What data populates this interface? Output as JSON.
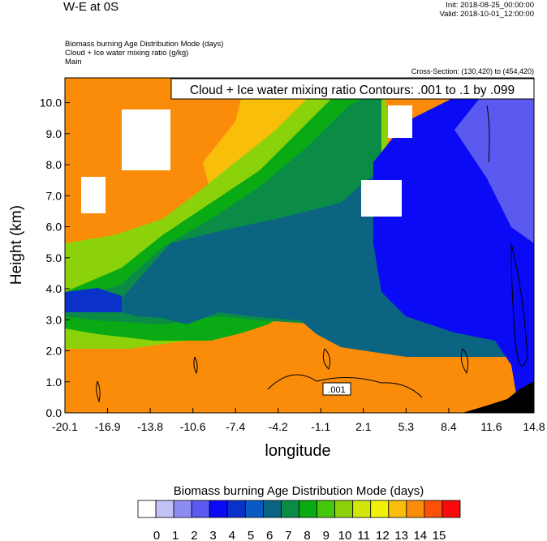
{
  "header": {
    "title": "W-E at 0S",
    "init": "Init: 2018-08-25_00:00:00",
    "valid": "Valid: 2018-10-01_12:00:00",
    "subtitle_lines": [
      "Biomass burning Age Distribution Mode   (days)",
      "Cloud + Ice water mixing ratio   (g/kg)",
      "Main"
    ],
    "cross_section": "Cross-Section: (130,420) to (454,420)"
  },
  "chart_data": {
    "type": "heatmap",
    "ylabel": "Height (km)",
    "xlabel": "longitude",
    "x_ticks": [
      "-20.1",
      "-16.9",
      "-13.8",
      "-10.6",
      "-7.4",
      "-4.2",
      "-1.1",
      "2.1",
      "5.3",
      "8.4",
      "11.6",
      "14.8"
    ],
    "y_ticks": [
      "0.0",
      "1.0",
      "2.0",
      "3.0",
      "4.0",
      "5.0",
      "6.0",
      "7.0",
      "8.0",
      "9.0",
      "10.0"
    ],
    "xlim": [
      -20.1,
      14.8
    ],
    "ylim": [
      0,
      10.8
    ],
    "contour_annotation": "Cloud + Ice water mixing ratio Contours: .001 to .1 by .099",
    "contour_label": ".001",
    "colorbar": {
      "title": "Biomass burning Age Distribution Mode  (days)",
      "labels": [
        "0",
        "1",
        "2",
        "3",
        "4",
        "5",
        "6",
        "7",
        "8",
        "9",
        "10",
        "11",
        "12",
        "13",
        "14",
        "15"
      ],
      "colors": [
        "#ffffff",
        "#c2c2f5",
        "#8c8cf2",
        "#5a5af0",
        "#0a0af5",
        "#0a32c8",
        "#0a5ac3",
        "#0a6482",
        "#0a8c46",
        "#0aaa14",
        "#46c80a",
        "#8cd20a",
        "#d2e60a",
        "#f0f00a",
        "#f8be0a",
        "#fa8c0a",
        "#fa500a",
        "#fa0a0a"
      ]
    }
  }
}
